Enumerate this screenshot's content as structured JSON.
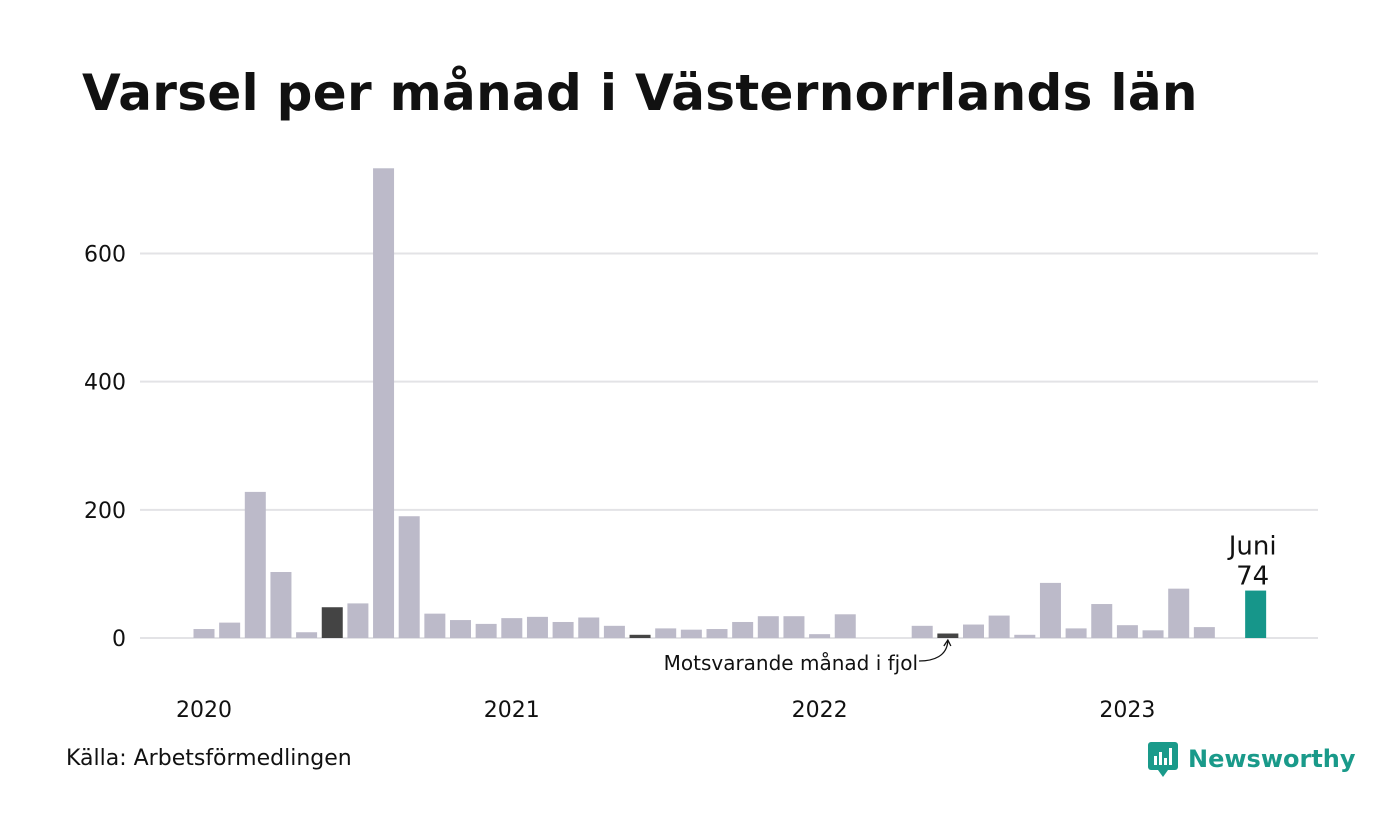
{
  "title": "Varsel per månad i Västernorrlands län",
  "source": "Källa: Arbetsförmedlingen",
  "brand": {
    "name": "Newsworthy",
    "icon": "newsworthy-logo-icon",
    "color": "#1a9a8a"
  },
  "colors": {
    "bar": "#bcbac9",
    "highlight": "#444444",
    "current": "#16968a",
    "grid": "#e3e3e6"
  },
  "chart_data": {
    "type": "bar",
    "title": "Varsel per månad i Västernorrlands län",
    "xlabel": "",
    "ylabel": "",
    "ylim": [
      0,
      735
    ],
    "yticks": [
      0,
      200,
      400,
      600
    ],
    "grid": true,
    "x_year_labels": [
      {
        "label": "2020",
        "month_index": 0
      },
      {
        "label": "2021",
        "month_index": 12
      },
      {
        "label": "2022",
        "month_index": 24
      },
      {
        "label": "2023",
        "month_index": 36
      }
    ],
    "months": [
      "2020-01",
      "2020-02",
      "2020-03",
      "2020-04",
      "2020-05",
      "2020-06",
      "2020-07",
      "2020-08",
      "2020-09",
      "2020-10",
      "2020-11",
      "2020-12",
      "2021-01",
      "2021-02",
      "2021-03",
      "2021-04",
      "2021-05",
      "2021-06",
      "2021-07",
      "2021-08",
      "2021-09",
      "2021-10",
      "2021-11",
      "2021-12",
      "2022-01",
      "2022-02",
      "2022-03",
      "2022-04",
      "2022-05",
      "2022-06",
      "2022-07",
      "2022-08",
      "2022-09",
      "2022-10",
      "2022-11",
      "2022-12",
      "2023-01",
      "2023-02",
      "2023-03",
      "2023-04",
      "2023-05",
      "2023-06"
    ],
    "values": [
      14,
      24,
      228,
      103,
      9,
      48,
      54,
      733,
      190,
      38,
      28,
      22,
      31,
      33,
      25,
      32,
      19,
      5,
      15,
      13,
      14,
      25,
      34,
      34,
      6,
      37,
      0,
      0,
      19,
      7,
      21,
      35,
      5,
      86,
      15,
      53,
      20,
      12,
      77,
      17,
      0,
      74
    ],
    "highlighted": [
      {
        "month_index": 5,
        "role": "same-month-earlier-year"
      },
      {
        "month_index": 17,
        "role": "same-month-earlier-year"
      },
      {
        "month_index": 29,
        "role": "same-month-previous-year"
      },
      {
        "month_index": 41,
        "role": "current-month"
      }
    ],
    "current_label": {
      "month": "Juni",
      "value": "74"
    },
    "annotation": {
      "text": "Motsvarande månad i fjol",
      "month_index": 29
    }
  }
}
